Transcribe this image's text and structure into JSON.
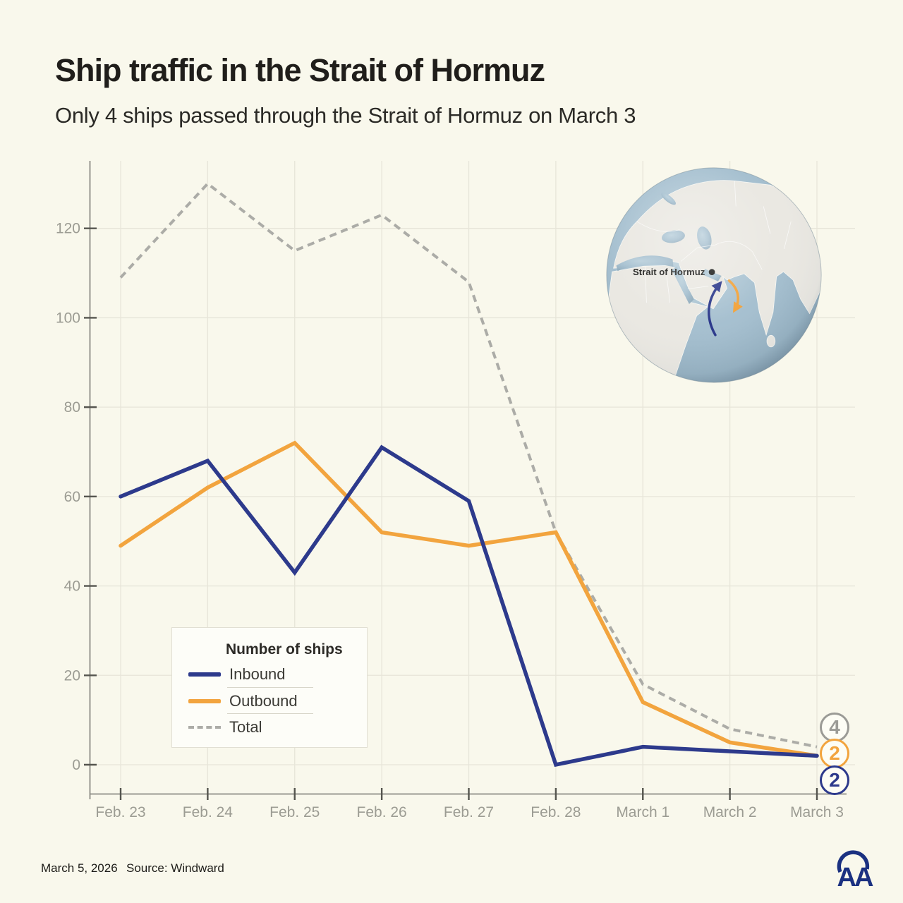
{
  "header": {
    "title": "Ship traffic in the Strait of Hormuz",
    "subtitle": "Only 4 ships passed through the Strait of Hormuz on March 3"
  },
  "chart_data": {
    "type": "line",
    "categories": [
      "Feb. 23",
      "Feb. 24",
      "Feb. 25",
      "Feb. 26",
      "Feb. 27",
      "Feb. 28",
      "March 1",
      "March 2",
      "March 3"
    ],
    "series": [
      {
        "name": "Inbound",
        "color": "#2d3a8c",
        "style": "solid",
        "values": [
          60,
          68,
          43,
          71,
          59,
          0,
          4,
          3,
          2
        ]
      },
      {
        "name": "Outbound",
        "color": "#f2a43e",
        "style": "solid",
        "values": [
          49,
          62,
          72,
          52,
          49,
          52,
          14,
          5,
          2
        ]
      },
      {
        "name": "Total",
        "color": "#acaca7",
        "style": "dashed",
        "values": [
          109,
          130,
          115,
          123,
          108,
          52,
          18,
          8,
          4
        ]
      }
    ],
    "yticks": [
      0,
      20,
      40,
      60,
      80,
      100,
      120
    ],
    "ylim": [
      0,
      130
    ],
    "grid": true,
    "legend_title": "Number of ships",
    "legend_position": "inside-bottom-left",
    "end_labels": [
      {
        "value": "4",
        "color": "#9b9b96",
        "series": "Total"
      },
      {
        "value": "2",
        "color": "#f2a43e",
        "series": "Outbound"
      },
      {
        "value": "2",
        "color": "#2d3a8c",
        "series": "Inbound"
      }
    ]
  },
  "globe": {
    "label": "Strait of Hormuz"
  },
  "footer": {
    "date": "March 5, 2026",
    "source": "Source: Windward"
  },
  "logo": {
    "text": "AA"
  },
  "colors": {
    "background": "#f9f8ec",
    "gridline": "#e7e5d9",
    "spine": "#8b8b84",
    "tick": "#55554f",
    "tick_label": "#9c9c93",
    "ocean": "#a5bfcf",
    "land": "#eae8e2"
  }
}
